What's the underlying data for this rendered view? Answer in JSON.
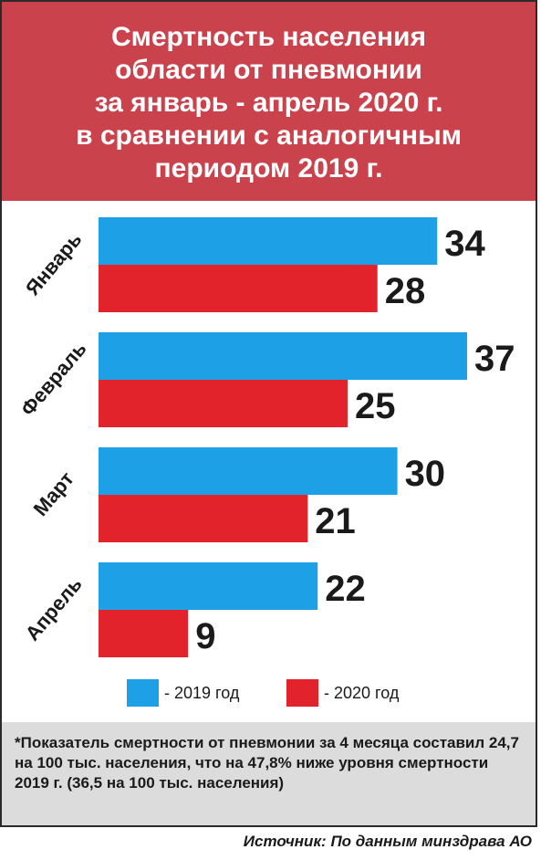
{
  "colors": {
    "header_bg": "#c9424c",
    "series_2019": "#1ea0e6",
    "series_2020": "#e3232c",
    "note_bg": "#dcdcdc"
  },
  "chart_data": {
    "type": "bar",
    "orientation": "horizontal",
    "title": "Смертность населения\nобласти от пневмонии\nза январь - апрель 2020 г.\nв сравнении с аналогичным\nпериодом 2019 г.",
    "categories": [
      "Январь",
      "Февраль",
      "Март",
      "Апрель"
    ],
    "series": [
      {
        "name": "- 2019 год",
        "values": [
          34,
          37,
          30,
          22
        ]
      },
      {
        "name": "- 2020 год",
        "values": [
          28,
          25,
          21,
          9
        ]
      }
    ],
    "xlim": [
      0,
      37
    ],
    "grid": false,
    "legend_position": "bottom"
  },
  "note": "*Показатель смертности от пневмонии за 4 месяца составил 24,7 на 100 тыс. населения, что на 47,8% ниже уровня смертности 2019 г. (36,5 на 100 тыс. населения)",
  "source": "Источник: По данным минздрава АО"
}
